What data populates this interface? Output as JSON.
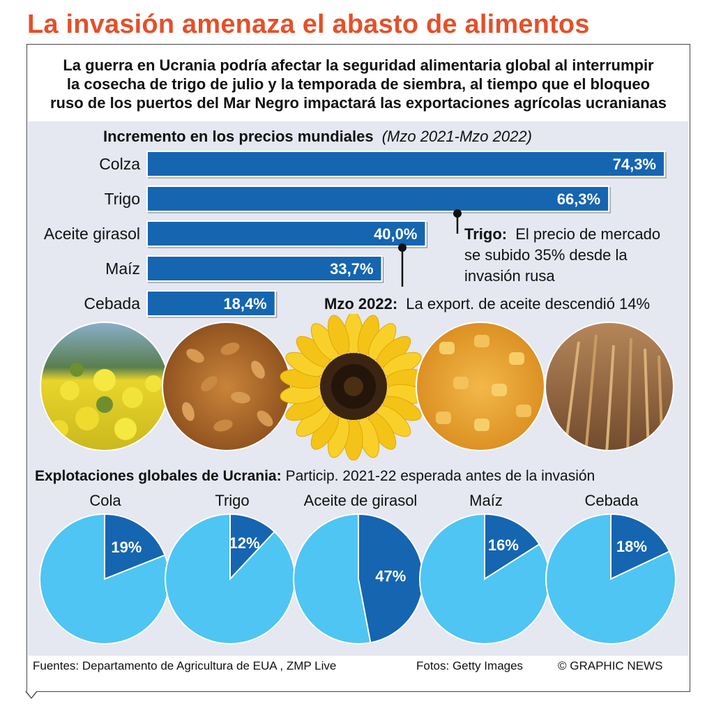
{
  "title": "La invasión amenaza el abasto de alimentos",
  "subtitle_lines": [
    "La guerra en Ucrania podría afectar la seguridad alimentaria global al interrumpir",
    "la cosecha de trigo de julio y la temporada de siembra, al tiempo que el bloqueo",
    "ruso de los puertos del Mar Negro impactará las exportaciones agrícolas ucranianas"
  ],
  "chart_data": [
    {
      "type": "bar",
      "orientation": "horizontal",
      "title": "Incremento en los precios mundiales",
      "period": "(Mzo 2021-Mzo 2022)",
      "categories": [
        "Colza",
        "Trigo",
        "Aceite girasol",
        "Maíz",
        "Cebada"
      ],
      "values": [
        74.3,
        66.3,
        40.0,
        33.7,
        18.4
      ],
      "value_labels": [
        "74,3%",
        "66,3%",
        "40,0%",
        "33,7%",
        "18,4%"
      ],
      "unit": "%",
      "xlim": [
        0,
        75
      ],
      "bar_color": "#1565b1"
    },
    {
      "type": "pie",
      "title": "Explotaciones globales de Ucrania:",
      "subtitle": "Particip. 2021-22 esperada antes de la invasión",
      "categories": [
        "Cola",
        "Trigo",
        "Aceite de girasol",
        "Maíz",
        "Cebada"
      ],
      "values": [
        19,
        12,
        47,
        16,
        18
      ],
      "value_labels": [
        "19%",
        "12%",
        "47%",
        "16%",
        "18%"
      ],
      "share_color": "#1565b1",
      "rest_color": "#4ec5f2"
    }
  ],
  "annotations": {
    "trigo_bold": "Trigo:",
    "trigo_text_lines": [
      "El precio de mercado",
      "se subido 35% desde la",
      "invasión rusa"
    ],
    "mzo_bold": "Mzo 2022:",
    "mzo_text": "La export. de aceite descendió 14%"
  },
  "photos": [
    "rapeseed-field-photo",
    "wheat-grains-photo",
    "sunflower-photo",
    "corn-kernels-photo",
    "barley-field-photo"
  ],
  "footer": {
    "sources": "Fuentes: Departamento de Agricultura de EUA , ZMP Live",
    "photos": "Fotos: Getty Images",
    "credit": "© GRAPHIC NEWS"
  },
  "colors": {
    "title": "#e4502a",
    "panel_bg": "#e5e7f1",
    "bar": "#1565b1",
    "pie_share": "#1565b1",
    "pie_rest": "#4ec5f2"
  }
}
